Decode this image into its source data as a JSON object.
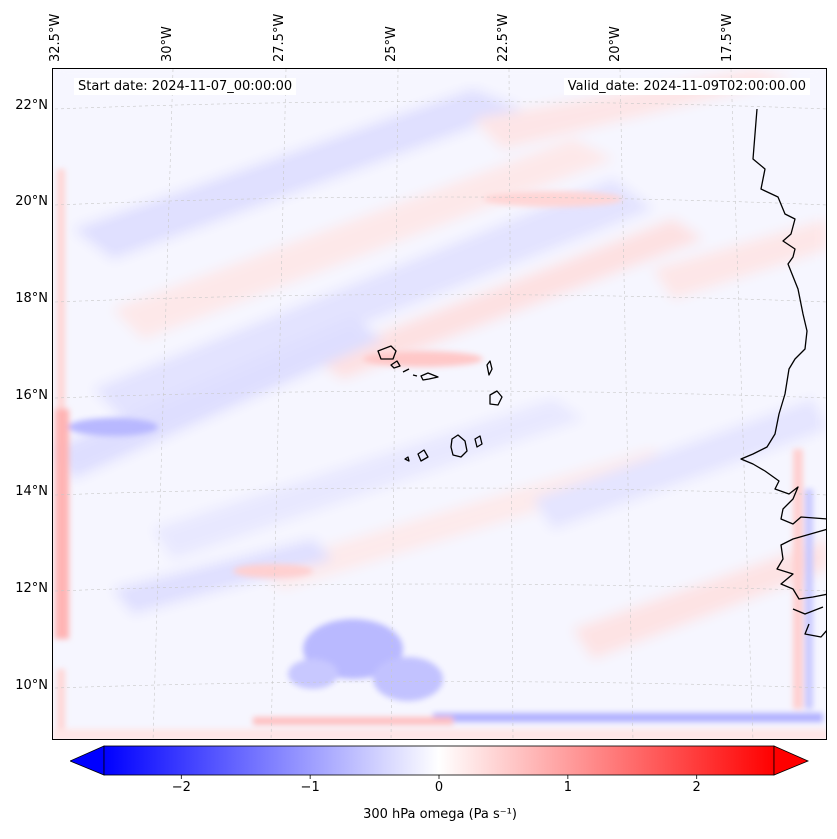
{
  "chart_data": {
    "type": "heatmap",
    "title": "",
    "variable_label": "300 hPa omega (Pa s⁻¹)",
    "start_date_text": "Start date: 2024-11-07_00:00:00",
    "valid_date_text": "Valid_date: 2024-11-09T02:00:00.00",
    "longitude_labels": [
      "32.5°W",
      "30°W",
      "27.5°W",
      "25°W",
      "22.5°W",
      "20°W",
      "17.5°W"
    ],
    "longitude_values": [
      -32.5,
      -30,
      -27.5,
      -25,
      -22.5,
      -20,
      -17.5
    ],
    "latitude_labels": [
      "22°N",
      "20°N",
      "18°N",
      "16°N",
      "14°N",
      "12°N",
      "10°N"
    ],
    "latitude_values": [
      22,
      20,
      18,
      16,
      14,
      12,
      10
    ],
    "lon_range": [
      -32.6,
      -15.3
    ],
    "lat_range": [
      8.9,
      22.8
    ],
    "colorbar": {
      "min": -2.6,
      "max": 2.6,
      "extend": "both",
      "colormap": "bwr",
      "ticks": [
        -2,
        -1,
        0,
        1,
        2
      ],
      "tick_labels": [
        "−2",
        "−1",
        "0",
        "1",
        "2"
      ]
    },
    "features": [
      {
        "name": "positive band near western boundary",
        "lon": -32.3,
        "lat_range": [
          10,
          15
        ],
        "value": 0.6
      },
      {
        "name": "negative band along southern boundary",
        "lat": 9.3,
        "lon_range": [
          -24,
          -16
        ],
        "value": -0.5
      },
      {
        "name": "negative convective cluster",
        "lon": -25.5,
        "lat": 10.8,
        "value": -0.7
      },
      {
        "name": "negative streak west of islands",
        "lon": -31,
        "lat": 15.4,
        "value": -0.5
      },
      {
        "name": "positive streak north of islands",
        "lon": -24,
        "lat": 16.8,
        "value": 0.3
      }
    ]
  },
  "colors": {
    "negative": "#0000ff",
    "zero": "#ffffff",
    "positive": "#ff0000",
    "coastline": "#000000",
    "gridline": "#c8c8c8"
  }
}
